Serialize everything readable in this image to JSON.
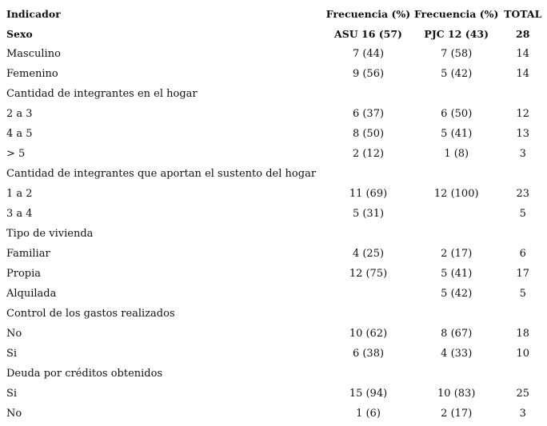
{
  "header": {
    "indicator": "Indicador",
    "col1": "Frecuencia (%)",
    "col2": "Frecuencia (%)",
    "col3": "TOTAL"
  },
  "rows": [
    {
      "label": "Sexo",
      "c1": "ASU 16 (57)",
      "c2": "PJC 12 (43)",
      "c3": "28",
      "bold": true
    },
    {
      "label": "Masculino",
      "c1": "7 (44)",
      "c2": "7 (58)",
      "c3": "14"
    },
    {
      "label": "Femenino",
      "c1": "9 (56)",
      "c2": "5 (42)",
      "c3": "14"
    },
    {
      "label": "Cantidad de integrantes en el hogar",
      "c1": "",
      "c2": "",
      "c3": ""
    },
    {
      "label": "2 a 3",
      "c1": "6 (37)",
      "c2": "6 (50)",
      "c3": "12"
    },
    {
      "label": "4 a 5",
      "c1": "8 (50)",
      "c2": "5 (41)",
      "c3": "13"
    },
    {
      "label": "> 5",
      "c1": "2 (12)",
      "c2": "1 (8)",
      "c3": "3"
    },
    {
      "label": "Cantidad de integrantes que aportan el sustento del hogar",
      "c1": "",
      "c2": "",
      "c3": ""
    },
    {
      "label": "1 a 2",
      "c1": "11 (69)",
      "c2": "12 (100)",
      "c3": "23"
    },
    {
      "label": "3 a 4",
      "c1": "5 (31)",
      "c2": "",
      "c3": "5"
    },
    {
      "label": "Tipo de vivienda",
      "c1": "",
      "c2": "",
      "c3": ""
    },
    {
      "label": "Familiar",
      "c1": "4 (25)",
      "c2": "2 (17)",
      "c3": "6"
    },
    {
      "label": "Propia",
      "c1": "12 (75)",
      "c2": "5 (41)",
      "c3": "17"
    },
    {
      "label": "Alquilada",
      "c1": "",
      "c2": "5 (42)",
      "c3": "5"
    },
    {
      "label": "Control de los gastos realizados",
      "c1": "",
      "c2": "",
      "c3": ""
    },
    {
      "label": "No",
      "c1": "10 (62)",
      "c2": "8 (67)",
      "c3": "18"
    },
    {
      "label": "Si",
      "c1": "6 (38)",
      "c2": "4 (33)",
      "c3": "10"
    },
    {
      "label": "Deuda por créditos obtenidos",
      "c1": "",
      "c2": "",
      "c3": ""
    },
    {
      "label": "Si",
      "c1": "15 (94)",
      "c2": "10 (83)",
      "c3": "25"
    },
    {
      "label": "No",
      "c1": "1 (6)",
      "c2": "2 (17)",
      "c3": "3"
    }
  ]
}
